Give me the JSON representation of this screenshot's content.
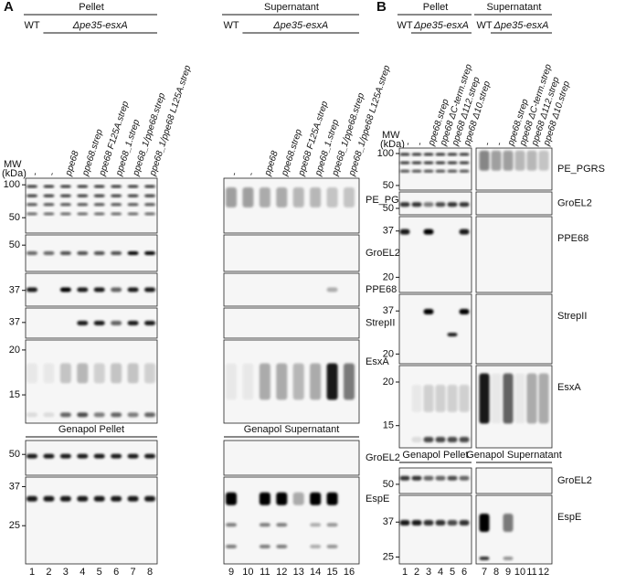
{
  "panels": [
    {
      "label": "A",
      "mw": "MW",
      "mw_unit": "(kDa)",
      "groups": [
        {
          "title": "Pellet",
          "wt": "WT",
          "strain": "Δpe35-esxA",
          "genapol_title": "Genapol Pellet",
          "lanes": [
            "-",
            "-",
            "ppe68",
            "ppe68.strep",
            "ppe68 F125A.strep",
            "ppe68_1.strep",
            "ppe68_1/ppe68.strep",
            "ppe68_1/ppe68 L125A.strep"
          ],
          "lane_numbers": [
            1,
            2,
            3,
            4,
            5,
            6,
            7,
            8
          ]
        },
        {
          "title": "Supernatant",
          "wt": "WT",
          "strain": "Δpe35-esxA",
          "genapol_title": "Genapol Supernatant",
          "lanes": [
            "-",
            "-",
            "ppe68",
            "ppe68.strep",
            "ppe68 F125A.strep",
            "ppe68_1.strep",
            "ppe68_1/ppe68.strep",
            "ppe68_1/ppe68 L125A.strep"
          ],
          "lane_numbers": [
            9,
            10,
            11,
            12,
            13,
            14,
            15,
            16
          ]
        }
      ],
      "blots": [
        {
          "label": "PE_PGRS",
          "markers": [
            100,
            50
          ]
        },
        {
          "label": "GroEL2",
          "markers": [
            50
          ]
        },
        {
          "label": "PPE68",
          "markers": [
            37
          ]
        },
        {
          "label": "StrepII",
          "markers": [
            37
          ]
        },
        {
          "label": "EsxA",
          "markers": [
            20,
            15
          ]
        }
      ],
      "genapol_blots": [
        {
          "label": "GroEL2",
          "markers": [
            50
          ]
        },
        {
          "label": "EspE",
          "markers": [
            37,
            25
          ]
        }
      ]
    },
    {
      "label": "B",
      "mw": "MW",
      "mw_unit": "(kDa)",
      "groups": [
        {
          "title": "Pellet",
          "wt": "WT",
          "strain": "Δpe35-esxA",
          "genapol_title": "Genapol Pellet",
          "lanes": [
            "-",
            "-",
            "ppe68.strep",
            "ppe68 ΔC-term.strep",
            "ppe68 Δ112.strep",
            "ppe68 Δ10.strep"
          ],
          "lane_numbers": [
            1,
            2,
            3,
            4,
            5,
            6
          ]
        },
        {
          "title": "Supernatant",
          "wt": "WT",
          "strain": "Δpe35-esxA",
          "genapol_title": "Genapol Supernatant",
          "lanes": [
            "-",
            "-",
            "ppe68.strep",
            "ppe68 ΔC-term.strep",
            "ppe68 Δ112.strep",
            "ppe68 Δ10.strep"
          ],
          "lane_numbers": [
            7,
            8,
            9,
            10,
            11,
            12
          ]
        }
      ],
      "blots": [
        {
          "label": "PE_PGRS",
          "markers": [
            100,
            50
          ]
        },
        {
          "label": "GroEL2",
          "markers": [
            50
          ]
        },
        {
          "label": "PPE68",
          "markers": [
            37,
            20
          ]
        },
        {
          "label": "StrepII",
          "markers": [
            37,
            20
          ]
        },
        {
          "label": "EsxA",
          "markers": [
            20,
            15
          ]
        }
      ],
      "genapol_blots": [
        {
          "label": "GroEL2",
          "markers": [
            50
          ]
        },
        {
          "label": "EspE",
          "markers": [
            37,
            25
          ]
        }
      ]
    }
  ]
}
